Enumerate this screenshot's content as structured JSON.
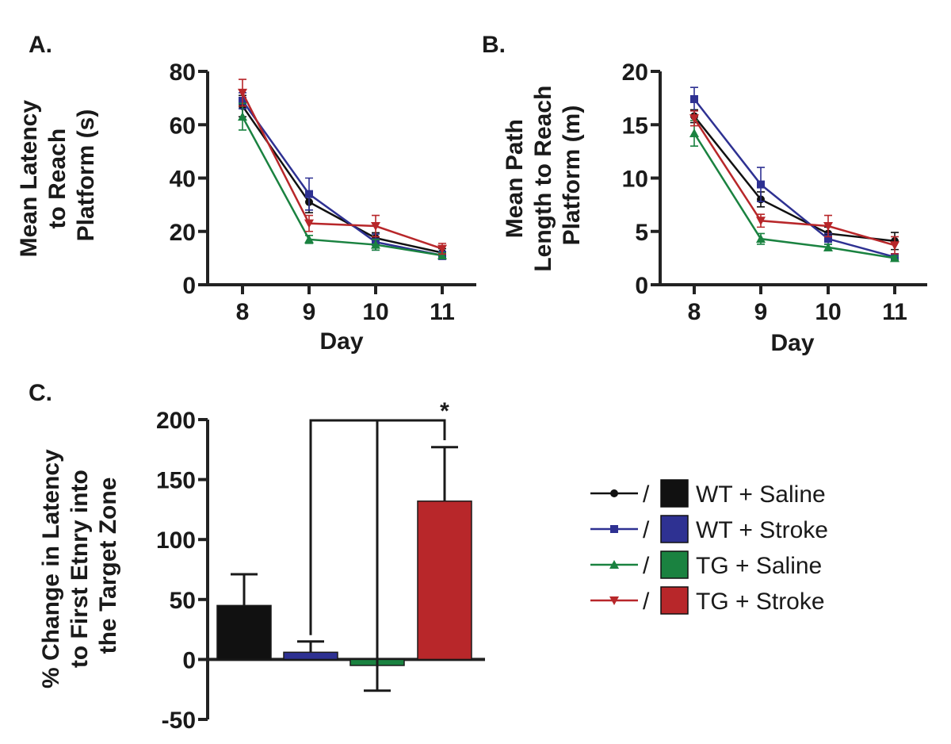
{
  "chart_data": [
    {
      "panel": "A.",
      "type": "line",
      "xlabel": "Day",
      "ylabel": [
        "Mean Latency",
        "to Reach",
        "Platform (s)"
      ],
      "categories": [
        "8",
        "9",
        "10",
        "11"
      ],
      "ylim": [
        0,
        80
      ],
      "yticks": [
        "0",
        "20",
        "40",
        "60",
        "80"
      ],
      "series": [
        {
          "group": 0,
          "values": [
            67,
            31,
            17.5,
            12
          ],
          "errors": [
            4,
            4,
            2,
            1.5
          ]
        },
        {
          "group": 1,
          "values": [
            69,
            34,
            16,
            11
          ],
          "errors": [
            3,
            6,
            3,
            1.5
          ]
        },
        {
          "group": 2,
          "values": [
            63,
            17,
            15,
            11
          ],
          "errors": [
            5,
            1.5,
            2,
            1
          ]
        },
        {
          "group": 3,
          "values": [
            72,
            23,
            22,
            13.5
          ],
          "errors": [
            5,
            3,
            4,
            2
          ]
        }
      ]
    },
    {
      "panel": "B.",
      "type": "line",
      "xlabel": "Day",
      "ylabel": [
        "Mean Path",
        "Length to Reach",
        "Platform (m)"
      ],
      "categories": [
        "8",
        "9",
        "10",
        "11"
      ],
      "ylim": [
        0,
        20
      ],
      "yticks": [
        "0",
        "5",
        "10",
        "15",
        "20"
      ],
      "series": [
        {
          "group": 0,
          "values": [
            15.8,
            8,
            4.8,
            4.1
          ],
          "errors": [
            0.6,
            0.7,
            0.6,
            0.8
          ]
        },
        {
          "group": 1,
          "values": [
            17.4,
            9.4,
            4.3,
            2.6
          ],
          "errors": [
            1.1,
            1.6,
            0.5,
            0.3
          ]
        },
        {
          "group": 2,
          "values": [
            14.2,
            4.3,
            3.5,
            2.5
          ],
          "errors": [
            1.2,
            0.5,
            0.3,
            0.2
          ]
        },
        {
          "group": 3,
          "values": [
            15.6,
            6,
            5.5,
            3.7
          ],
          "errors": [
            0.7,
            0.6,
            1,
            0.8
          ]
        }
      ]
    },
    {
      "panel": "C.",
      "type": "bar",
      "ylabel": [
        "% Change in Latency",
        "to First Etnry into",
        "the Target Zone"
      ],
      "ylim": [
        -50,
        200
      ],
      "yticks": [
        "-50",
        "0",
        "50",
        "100",
        "150",
        "200"
      ],
      "values": [
        45,
        6,
        -5,
        132
      ],
      "errors": [
        26,
        9,
        21,
        45
      ],
      "significance": "*"
    }
  ],
  "legend": [
    {
      "separator": "/",
      "label": "WT + Saline",
      "color": "#111111",
      "marker": "circle"
    },
    {
      "separator": "/",
      "label": "WT + Stroke",
      "color": "#2e3192",
      "marker": "square"
    },
    {
      "separator": "/",
      "label": "TG + Saline",
      "color": "#1a8240",
      "marker": "triangle-up"
    },
    {
      "separator": "/",
      "label": "TG + Stroke",
      "color": "#b8272a",
      "marker": "triangle-down"
    }
  ]
}
